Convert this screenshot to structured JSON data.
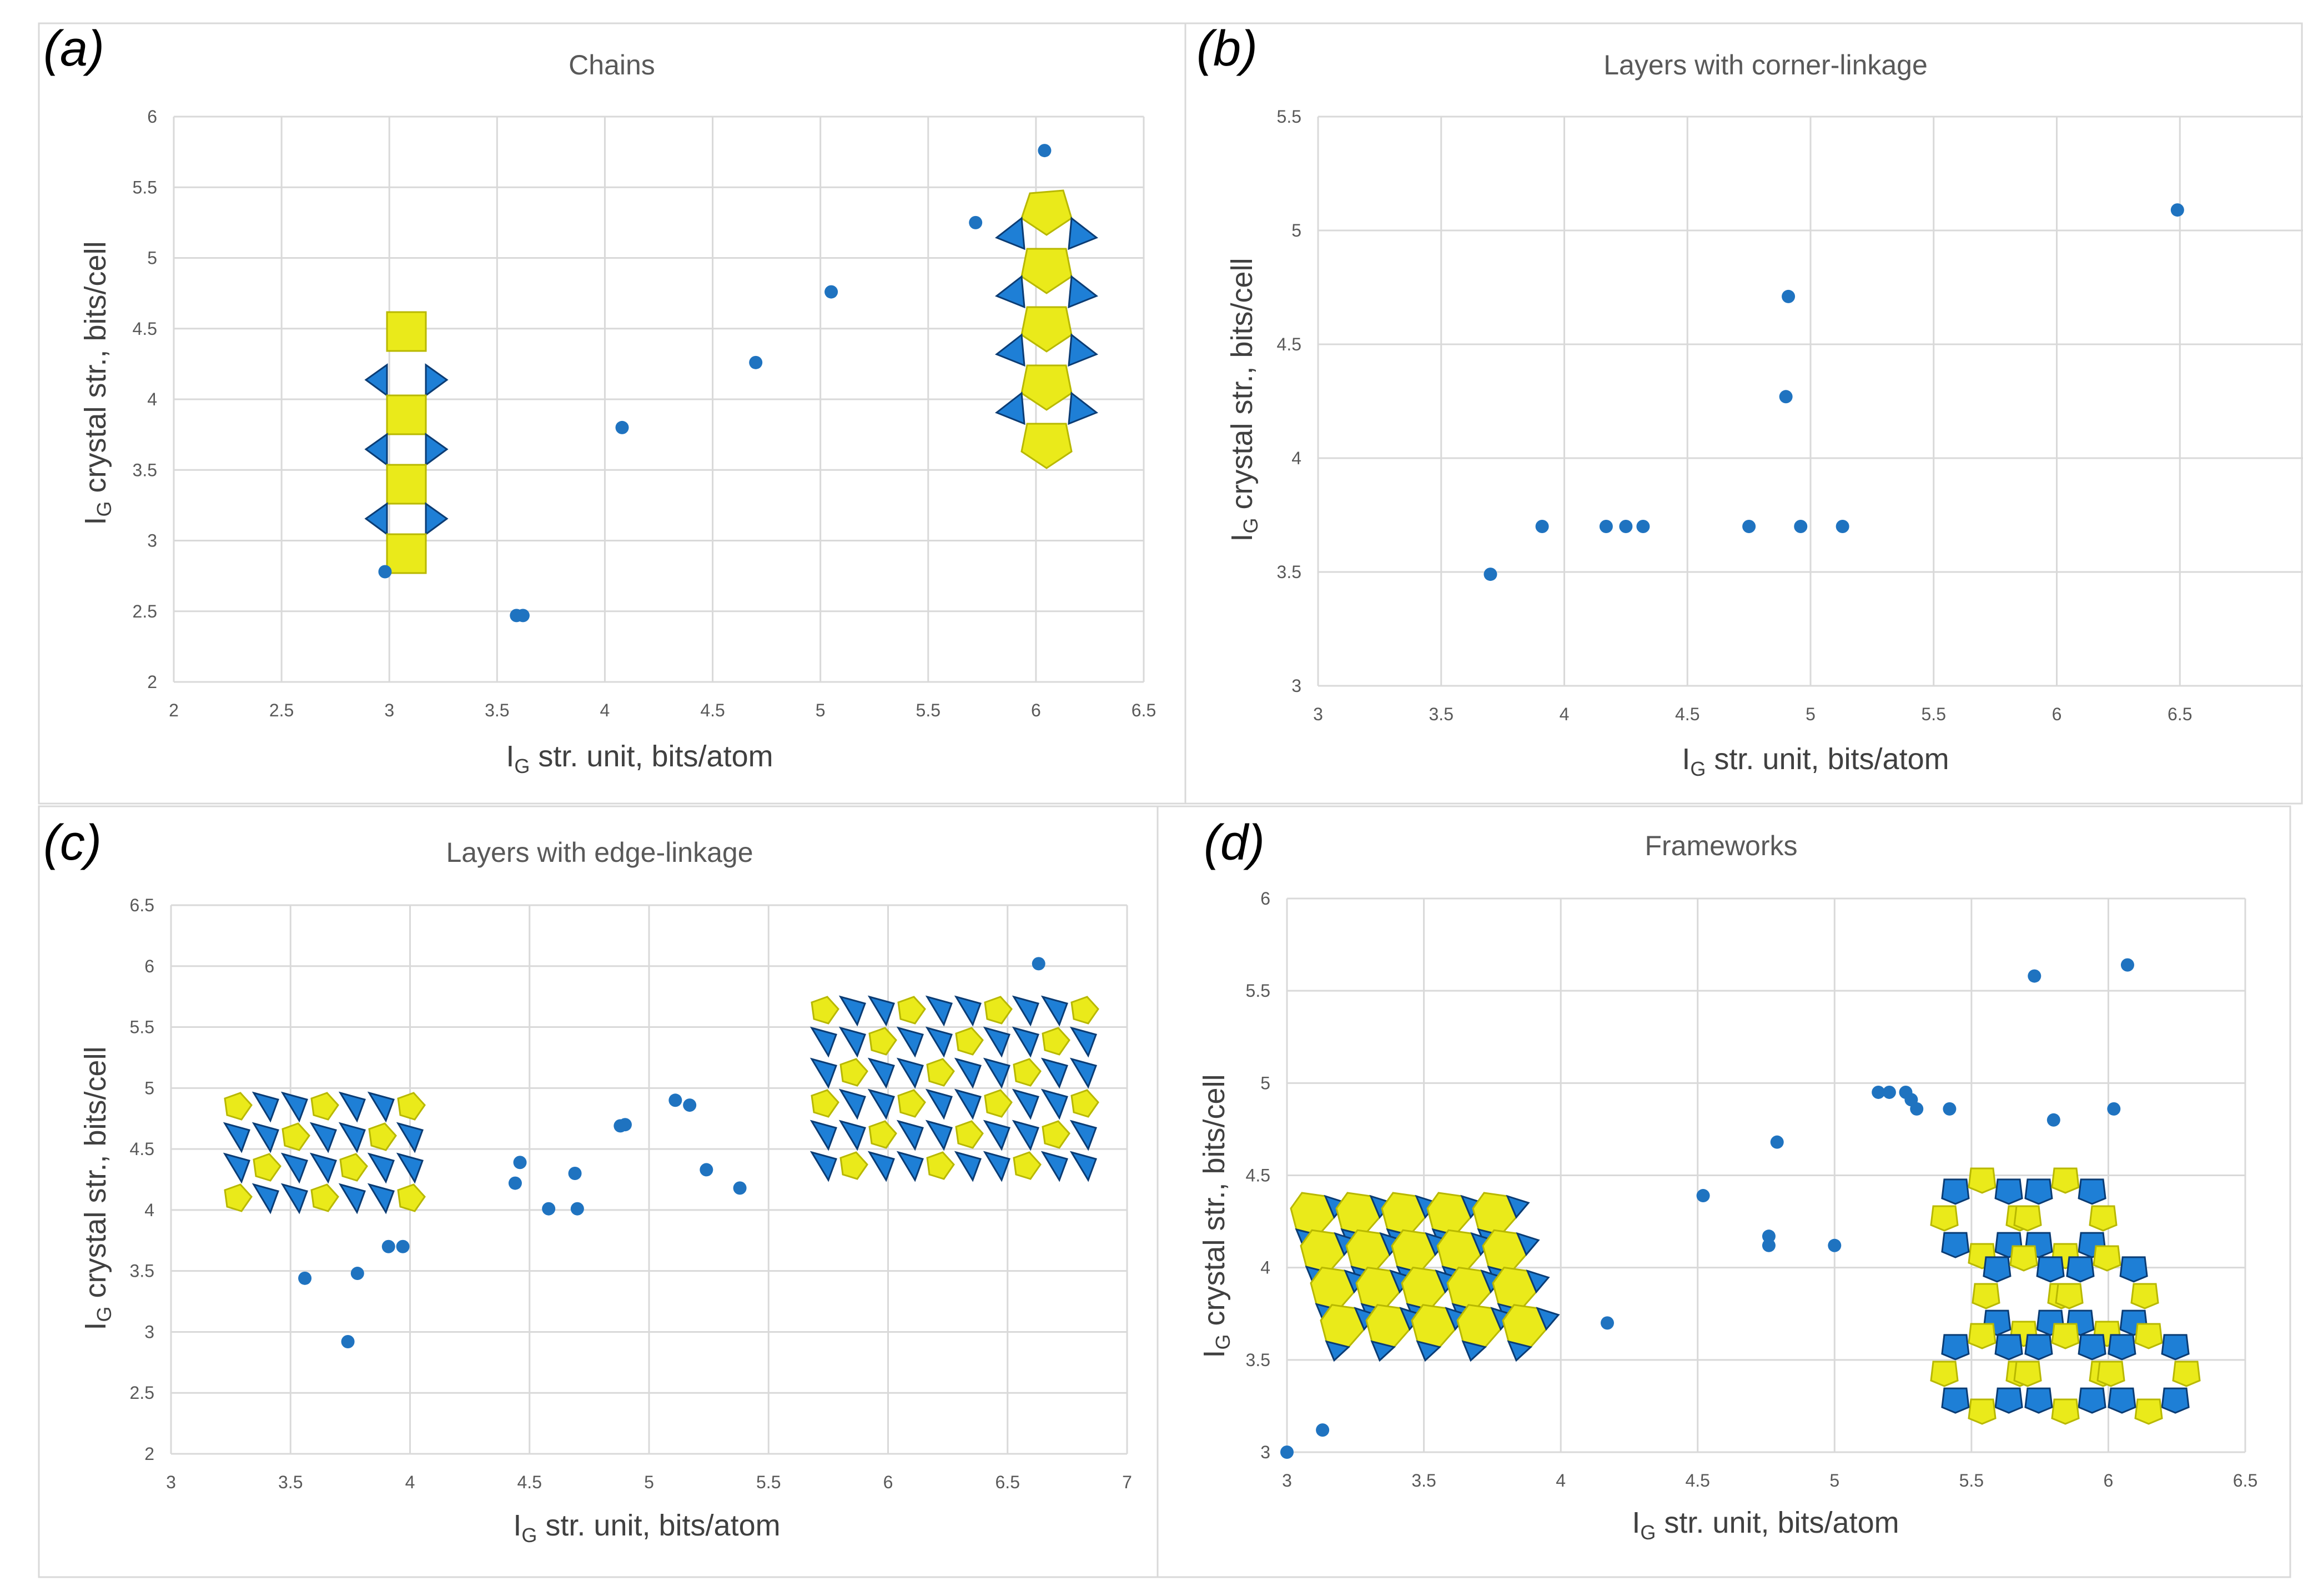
{
  "figure": {
    "panel_labels": [
      "(a)",
      "(b)",
      "(c)",
      "(d)"
    ]
  },
  "colors": {
    "marker": "#1f73c0",
    "grid": "#d9d9d9",
    "polyhedron_yellow": "#eaea1a",
    "polyhedron_blue": "#1e7fd6"
  },
  "chart_data": [
    {
      "id": "a",
      "type": "scatter",
      "title": "Chains",
      "xlabel": {
        "main": "I",
        "sub": "G",
        "rest": " str. unit, bits/atom"
      },
      "ylabel": {
        "main": "I",
        "sub": "G",
        "rest": " crystal str., bits/cell"
      },
      "xlim": [
        2,
        6.5
      ],
      "ylim": [
        2,
        6
      ],
      "xticks": [
        "2",
        "2.5",
        "3",
        "3.5",
        "4",
        "4.5",
        "5",
        "5.5",
        "6",
        "6.5"
      ],
      "yticks": [
        "2",
        "2.5",
        "3",
        "3.5",
        "4",
        "4.5",
        "5",
        "5.5",
        "6"
      ],
      "points": [
        [
          2.98,
          2.78
        ],
        [
          3.59,
          2.47
        ],
        [
          3.62,
          2.47
        ],
        [
          4.08,
          3.8
        ],
        [
          4.7,
          4.26
        ],
        [
          5.05,
          4.76
        ],
        [
          5.72,
          5.25
        ],
        [
          6.04,
          5.76
        ]
      ]
    },
    {
      "id": "b",
      "type": "scatter",
      "title": "Layers with corner-linkage",
      "xlabel": {
        "main": "I",
        "sub": "G",
        "rest": " str. unit, bits/atom"
      },
      "ylabel": {
        "main": "I",
        "sub": "G",
        "rest": " crystal str., bits/cell"
      },
      "xlim": [
        3,
        7
      ],
      "ylim": [
        3,
        5.5
      ],
      "xticks": [
        "3",
        "3.5",
        "4",
        "4.5",
        "5",
        "5.5",
        "6",
        "6.5"
      ],
      "yticks": [
        "3",
        "3.5",
        "4",
        "4.5",
        "5",
        "5.5"
      ],
      "points": [
        [
          3.7,
          3.49
        ],
        [
          3.91,
          3.7
        ],
        [
          4.17,
          3.7
        ],
        [
          4.25,
          3.7
        ],
        [
          4.32,
          3.7
        ],
        [
          4.75,
          3.7
        ],
        [
          4.9,
          4.27
        ],
        [
          4.91,
          4.71
        ],
        [
          4.96,
          3.7
        ],
        [
          5.13,
          3.7
        ],
        [
          6.49,
          5.09
        ]
      ]
    },
    {
      "id": "c",
      "type": "scatter",
      "title": "Layers with edge-linkage",
      "xlabel": {
        "main": "I",
        "sub": "G",
        "rest": " str. unit, bits/atom"
      },
      "ylabel": {
        "main": "I",
        "sub": "G",
        "rest": " crystal str., bits/cell"
      },
      "xlim": [
        3,
        7
      ],
      "ylim": [
        2,
        6.5
      ],
      "xticks": [
        "3",
        "3.5",
        "4",
        "4.5",
        "5",
        "5.5",
        "6",
        "6.5",
        "7"
      ],
      "yticks": [
        "2",
        "2.5",
        "3",
        "3.5",
        "4",
        "4.5",
        "5",
        "5.5",
        "6",
        "6.5"
      ],
      "points": [
        [
          3.56,
          3.44
        ],
        [
          3.74,
          2.92
        ],
        [
          3.78,
          3.48
        ],
        [
          3.91,
          3.7
        ],
        [
          3.97,
          3.7
        ],
        [
          4.44,
          4.22
        ],
        [
          4.46,
          4.39
        ],
        [
          4.58,
          4.01
        ],
        [
          4.69,
          4.3
        ],
        [
          4.7,
          4.01
        ],
        [
          4.88,
          4.69
        ],
        [
          4.9,
          4.7
        ],
        [
          5.11,
          4.9
        ],
        [
          5.17,
          4.86
        ],
        [
          5.24,
          4.33
        ],
        [
          5.38,
          4.18
        ],
        [
          6.63,
          6.02
        ]
      ]
    },
    {
      "id": "d",
      "type": "scatter",
      "title": "Frameworks",
      "xlabel": {
        "main": "I",
        "sub": "G",
        "rest": " str. unit, bits/atom"
      },
      "ylabel": {
        "main": "I",
        "sub": "G",
        "rest": " crystal str., bits/cell"
      },
      "xlim": [
        3,
        6.5
      ],
      "ylim": [
        3,
        6
      ],
      "xticks": [
        "3",
        "3.5",
        "4",
        "4.5",
        "5",
        "5.5",
        "6",
        "6.5"
      ],
      "yticks": [
        "3",
        "3.5",
        "4",
        "4.5",
        "5",
        "5.5",
        "6"
      ],
      "points": [
        [
          3.0,
          3.0
        ],
        [
          3.13,
          3.12
        ],
        [
          4.17,
          3.7
        ],
        [
          4.52,
          4.39
        ],
        [
          4.76,
          4.17
        ],
        [
          4.76,
          4.12
        ],
        [
          4.79,
          4.68
        ],
        [
          5.0,
          4.12
        ],
        [
          5.16,
          4.95
        ],
        [
          5.2,
          4.95
        ],
        [
          5.26,
          4.95
        ],
        [
          5.28,
          4.91
        ],
        [
          5.3,
          4.86
        ],
        [
          5.42,
          4.86
        ],
        [
          5.73,
          5.58
        ],
        [
          5.8,
          4.8
        ],
        [
          6.02,
          4.86
        ],
        [
          6.07,
          5.64
        ]
      ]
    }
  ]
}
